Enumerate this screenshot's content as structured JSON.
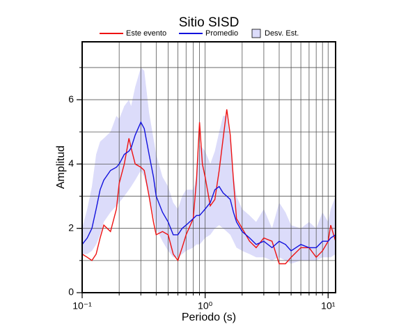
{
  "chart_data": {
    "type": "line",
    "title": "Sitio SISD",
    "x_label": "Periodo (s)",
    "y_label": "Amplitud",
    "xscale": "log",
    "xlim": [
      0.1,
      11.5
    ],
    "ylim": [
      0,
      7.8
    ],
    "xticks": [
      {
        "value": 0.1,
        "label": "10⁻¹"
      },
      {
        "value": 1,
        "label": "10⁰"
      },
      {
        "value": 10,
        "label": "10¹"
      }
    ],
    "yticks": [
      0,
      2,
      4,
      6
    ],
    "xgrid": [
      0.2,
      0.3,
      0.4,
      0.5,
      0.6,
      0.7,
      0.8,
      0.9,
      1,
      2,
      3,
      4,
      5,
      6,
      7,
      8,
      9,
      10
    ],
    "ygrid": [
      1,
      2,
      3,
      4,
      5,
      6,
      7
    ],
    "grid": true,
    "legend": "top",
    "x": [
      0.1,
      0.11,
      0.12,
      0.13,
      0.14,
      0.15,
      0.17,
      0.19,
      0.2,
      0.22,
      0.24,
      0.25,
      0.27,
      0.3,
      0.32,
      0.35,
      0.38,
      0.4,
      0.45,
      0.5,
      0.55,
      0.6,
      0.65,
      0.7,
      0.8,
      0.85,
      0.9,
      0.95,
      1.0,
      1.1,
      1.2,
      1.3,
      1.4,
      1.5,
      1.6,
      1.7,
      1.8,
      2.0,
      2.3,
      2.6,
      3.0,
      3.5,
      4.0,
      4.5,
      5.0,
      6.0,
      7.0,
      8.0,
      9.0,
      10,
      10.5,
      11.5
    ],
    "series": [
      {
        "name": "Este evento",
        "color": "#ee1111",
        "values": [
          1.2,
          1.1,
          1.0,
          1.2,
          1.7,
          2.1,
          1.9,
          2.6,
          3.4,
          4.0,
          4.8,
          4.5,
          4.0,
          3.9,
          3.8,
          3.0,
          2.2,
          1.8,
          1.9,
          1.8,
          1.2,
          1.0,
          1.4,
          1.8,
          2.3,
          3.5,
          5.3,
          4.0,
          3.6,
          2.7,
          2.9,
          3.8,
          4.8,
          5.7,
          4.9,
          3.5,
          2.3,
          2.0,
          1.6,
          1.4,
          1.7,
          1.6,
          0.9,
          0.9,
          1.1,
          1.4,
          1.4,
          1.1,
          1.3,
          1.6,
          2.1,
          1.6
        ]
      },
      {
        "name": "Promedio",
        "color": "#1111dd",
        "values": [
          1.5,
          1.7,
          2.0,
          2.6,
          3.2,
          3.5,
          3.8,
          3.9,
          4.0,
          4.3,
          4.4,
          4.5,
          4.9,
          5.3,
          5.1,
          4.3,
          3.6,
          3.0,
          2.5,
          2.2,
          1.8,
          1.8,
          2.0,
          2.1,
          2.3,
          2.4,
          2.4,
          2.5,
          2.6,
          2.8,
          3.2,
          3.3,
          3.1,
          3.0,
          2.9,
          2.5,
          2.2,
          1.9,
          1.7,
          1.5,
          1.6,
          1.4,
          1.6,
          1.5,
          1.3,
          1.5,
          1.4,
          1.4,
          1.6,
          1.6,
          1.7,
          1.8
        ]
      },
      {
        "name": "Desv. Est.",
        "color": "#dcdcfa",
        "type": "band",
        "upper": [
          2.0,
          2.6,
          3.3,
          4.3,
          4.7,
          4.8,
          5.0,
          5.5,
          5.4,
          5.8,
          6.0,
          5.8,
          6.4,
          7.0,
          6.9,
          5.6,
          4.8,
          4.3,
          3.6,
          3.3,
          2.8,
          2.6,
          3.0,
          3.2,
          3.2,
          3.6,
          4.6,
          4.5,
          4.4,
          4.0,
          4.4,
          5.0,
          5.5,
          5.5,
          4.7,
          3.7,
          3.0,
          2.6,
          2.4,
          2.2,
          2.6,
          2.0,
          2.8,
          2.5,
          2.1,
          2.0,
          2.2,
          2.0,
          2.5,
          2.2,
          2.6,
          3.0
        ],
        "lower": [
          1.2,
          1.2,
          1.3,
          1.5,
          1.8,
          2.2,
          2.5,
          2.7,
          2.8,
          3.0,
          3.2,
          3.3,
          3.5,
          3.8,
          3.6,
          3.0,
          2.4,
          2.0,
          1.6,
          1.3,
          1.1,
          1.1,
          1.2,
          1.3,
          1.4,
          1.5,
          1.5,
          1.6,
          1.7,
          1.8,
          2.0,
          2.1,
          2.0,
          1.9,
          1.8,
          1.6,
          1.4,
          1.3,
          1.2,
          1.1,
          1.1,
          1.0,
          1.1,
          1.0,
          0.9,
          1.0,
          1.0,
          1.0,
          1.1,
          1.1,
          1.1,
          1.2
        ]
      }
    ]
  }
}
